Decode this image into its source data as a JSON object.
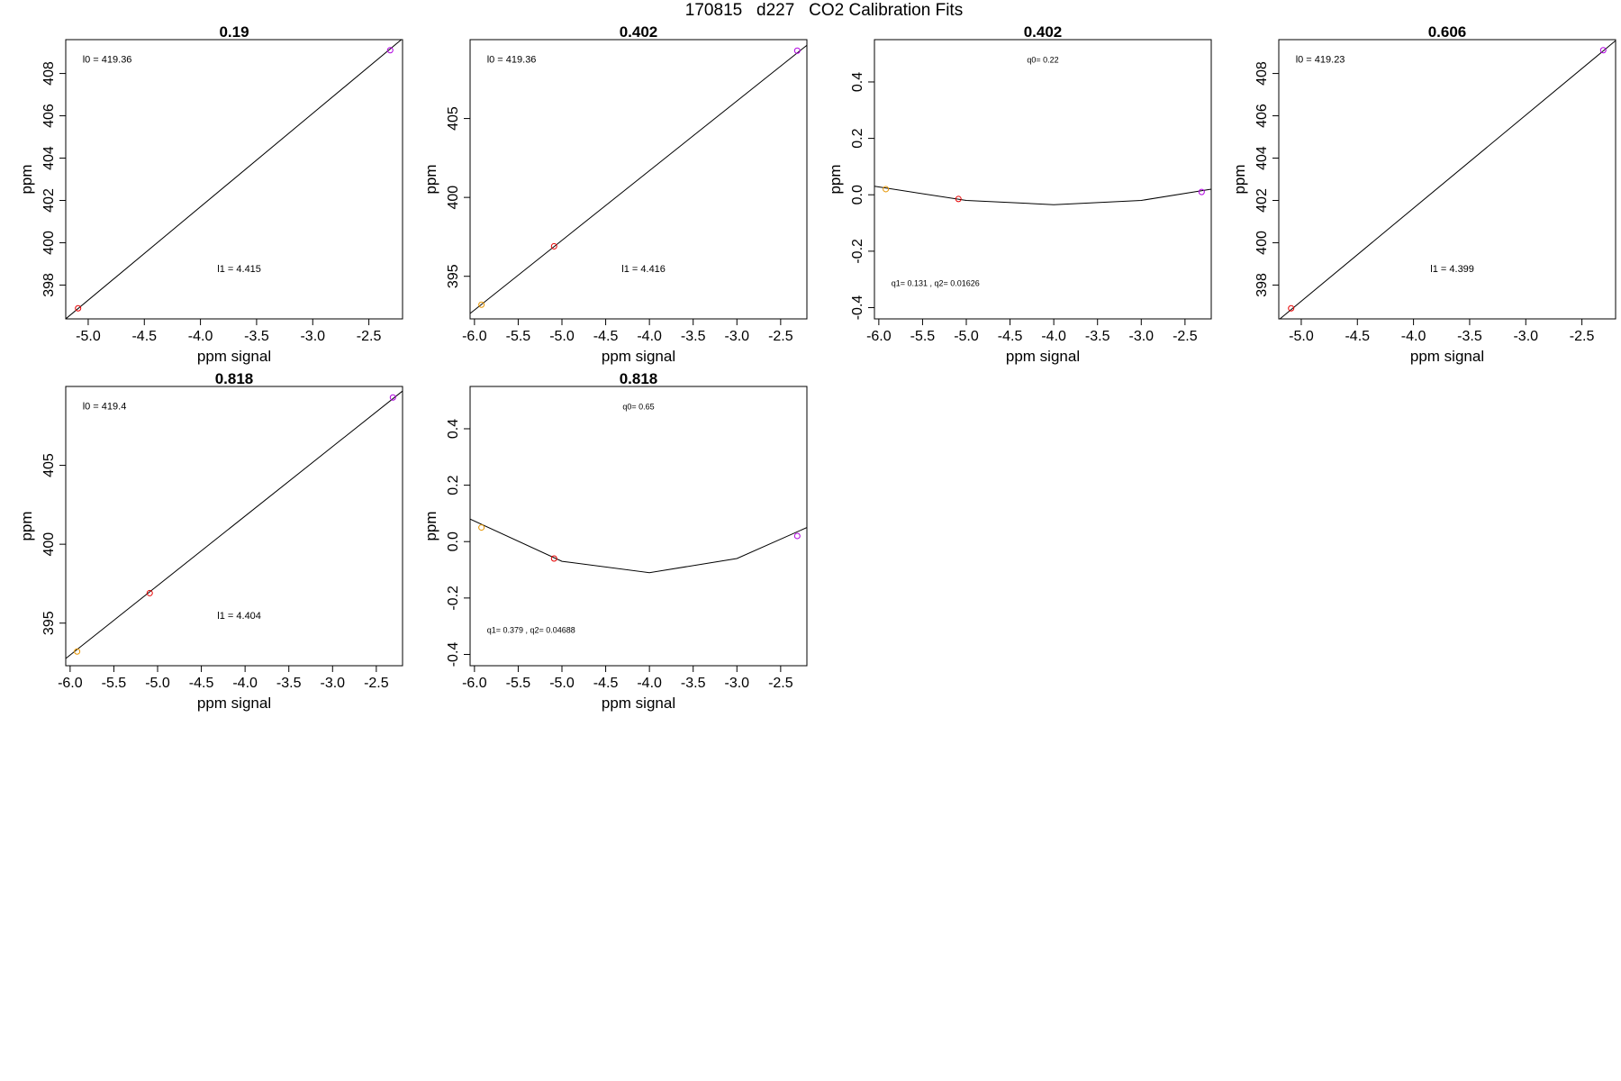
{
  "page": {
    "title": "170815   d227   CO2 Calibration Fits"
  },
  "chart_data": [
    {
      "type": "scatter",
      "title": "0.19",
      "xlabel": "ppm signal",
      "ylabel": "ppm",
      "xlim": [
        -5.2,
        -2.2
      ],
      "ylim": [
        396.4,
        409.6
      ],
      "xticks": [
        -5.0,
        -4.5,
        -4.0,
        -3.5,
        -3.0,
        -2.5
      ],
      "xtick_labels": [
        "-5.0",
        "-4.5",
        "-4.0",
        "-3.5",
        "-3.0",
        "-2.5"
      ],
      "yticks": [
        398,
        400,
        402,
        404,
        406,
        408
      ],
      "ytick_labels": [
        "398",
        "400",
        "402",
        "404",
        "406",
        "408"
      ],
      "points": [
        {
          "x": -5.09,
          "y": 396.9,
          "color": "#e60000"
        },
        {
          "x": -2.31,
          "y": 409.1,
          "color": "#b000e0"
        }
      ],
      "fit": {
        "kind": "linear",
        "intercept": 419.36,
        "slope": 4.415
      },
      "annotations": [
        {
          "text": "l0 =  419.36",
          "ax": 0.05,
          "ay": 0.93,
          "anchor": "start",
          "size": 11
        },
        {
          "text": "l1 =  4.415",
          "ax": 0.45,
          "ay": 0.18,
          "anchor": "start",
          "size": 11
        }
      ]
    },
    {
      "type": "scatter",
      "title": "0.402",
      "xlabel": "ppm signal",
      "ylabel": "ppm",
      "xlim": [
        -6.05,
        -2.2
      ],
      "ylim": [
        392.3,
        410.0
      ],
      "xticks": [
        -6.0,
        -5.5,
        -5.0,
        -4.5,
        -4.0,
        -3.5,
        -3.0,
        -2.5
      ],
      "xtick_labels": [
        "-6.0",
        "-5.5",
        "-5.0",
        "-4.5",
        "-4.0",
        "-3.5",
        "-3.0",
        "-2.5"
      ],
      "yticks": [
        395,
        400,
        405
      ],
      "ytick_labels": [
        "395",
        "400",
        "405"
      ],
      "points": [
        {
          "x": -5.92,
          "y": 393.2,
          "color": "#e69500"
        },
        {
          "x": -5.09,
          "y": 396.9,
          "color": "#e60000"
        },
        {
          "x": -2.31,
          "y": 409.3,
          "color": "#b000e0"
        }
      ],
      "fit": {
        "kind": "linear",
        "intercept": 419.36,
        "slope": 4.416
      },
      "annotations": [
        {
          "text": "l0 =  419.36",
          "ax": 0.05,
          "ay": 0.93,
          "anchor": "start",
          "size": 11
        },
        {
          "text": "l1 =  4.416",
          "ax": 0.45,
          "ay": 0.18,
          "anchor": "start",
          "size": 11
        }
      ]
    },
    {
      "type": "line",
      "title": "0.402",
      "xlabel": "ppm signal",
      "ylabel": "ppm",
      "xlim": [
        -6.05,
        -2.2
      ],
      "ylim": [
        -0.44,
        0.55
      ],
      "xticks": [
        -6.0,
        -5.5,
        -5.0,
        -4.5,
        -4.0,
        -3.5,
        -3.0,
        -2.5
      ],
      "xtick_labels": [
        "-6.0",
        "-5.5",
        "-5.0",
        "-4.5",
        "-4.0",
        "-3.5",
        "-3.0",
        "-2.5"
      ],
      "yticks": [
        -0.4,
        -0.2,
        0.0,
        0.2,
        0.4
      ],
      "ytick_labels": [
        "-0.4",
        "-0.2",
        "0.0",
        "0.2",
        "0.4"
      ],
      "points": [
        {
          "x": -5.92,
          "y": 0.02,
          "color": "#e69500"
        },
        {
          "x": -5.09,
          "y": -0.015,
          "color": "#e60000"
        },
        {
          "x": -2.31,
          "y": 0.01,
          "color": "#b000e0"
        }
      ],
      "line": {
        "x": [
          -6.05,
          -5.0,
          -4.0,
          -3.0,
          -2.2
        ],
        "y": [
          0.03,
          -0.02,
          -0.035,
          -0.02,
          0.02
        ]
      },
      "annotations": [
        {
          "text": "q0= 0.22",
          "ax": 0.5,
          "ay": 0.93,
          "anchor": "middle",
          "size": 9
        },
        {
          "text": "q1= 0.131 , q2= 0.01626",
          "ax": 0.05,
          "ay": 0.13,
          "anchor": "start",
          "size": 9
        }
      ]
    },
    {
      "type": "scatter",
      "title": "0.606",
      "xlabel": "ppm signal",
      "ylabel": "ppm",
      "xlim": [
        -5.2,
        -2.2
      ],
      "ylim": [
        396.4,
        409.6
      ],
      "xticks": [
        -5.0,
        -4.5,
        -4.0,
        -3.5,
        -3.0,
        -2.5
      ],
      "xtick_labels": [
        "-5.0",
        "-4.5",
        "-4.0",
        "-3.5",
        "-3.0",
        "-2.5"
      ],
      "yticks": [
        398,
        400,
        402,
        404,
        406,
        408
      ],
      "ytick_labels": [
        "398",
        "400",
        "402",
        "404",
        "406",
        "408"
      ],
      "points": [
        {
          "x": -5.09,
          "y": 396.9,
          "color": "#e60000"
        },
        {
          "x": -2.31,
          "y": 409.1,
          "color": "#b000e0"
        }
      ],
      "fit": {
        "kind": "linear",
        "intercept": 419.23,
        "slope": 4.399
      },
      "annotations": [
        {
          "text": "l0 =  419.23",
          "ax": 0.05,
          "ay": 0.93,
          "anchor": "start",
          "size": 11
        },
        {
          "text": "l1 =  4.399",
          "ax": 0.45,
          "ay": 0.18,
          "anchor": "start",
          "size": 11
        }
      ]
    },
    {
      "type": "scatter",
      "title": "0.818",
      "xlabel": "ppm signal",
      "ylabel": "ppm",
      "xlim": [
        -6.05,
        -2.2
      ],
      "ylim": [
        392.3,
        410.0
      ],
      "xticks": [
        -6.0,
        -5.5,
        -5.0,
        -4.5,
        -4.0,
        -3.5,
        -3.0,
        -2.5
      ],
      "xtick_labels": [
        "-6.0",
        "-5.5",
        "-5.0",
        "-4.5",
        "-4.0",
        "-3.5",
        "-3.0",
        "-2.5"
      ],
      "yticks": [
        395,
        400,
        405
      ],
      "ytick_labels": [
        "395",
        "400",
        "405"
      ],
      "points": [
        {
          "x": -5.92,
          "y": 393.2,
          "color": "#e69500"
        },
        {
          "x": -5.09,
          "y": 396.9,
          "color": "#e60000"
        },
        {
          "x": -2.31,
          "y": 409.3,
          "color": "#b000e0"
        }
      ],
      "fit": {
        "kind": "linear",
        "intercept": 419.4,
        "slope": 4.404
      },
      "annotations": [
        {
          "text": "l0 =  419.4",
          "ax": 0.05,
          "ay": 0.93,
          "anchor": "start",
          "size": 11
        },
        {
          "text": "l1 =  4.404",
          "ax": 0.45,
          "ay": 0.18,
          "anchor": "start",
          "size": 11
        }
      ]
    },
    {
      "type": "line",
      "title": "0.818",
      "xlabel": "ppm signal",
      "ylabel": "ppm",
      "xlim": [
        -6.05,
        -2.2
      ],
      "ylim": [
        -0.44,
        0.55
      ],
      "xticks": [
        -6.0,
        -5.5,
        -5.0,
        -4.5,
        -4.0,
        -3.5,
        -3.0,
        -2.5
      ],
      "xtick_labels": [
        "-6.0",
        "-5.5",
        "-5.0",
        "-4.5",
        "-4.0",
        "-3.5",
        "-3.0",
        "-2.5"
      ],
      "yticks": [
        -0.4,
        -0.2,
        0.0,
        0.2,
        0.4
      ],
      "ytick_labels": [
        "-0.4",
        "-0.2",
        "0.0",
        "0.2",
        "0.4"
      ],
      "points": [
        {
          "x": -5.92,
          "y": 0.05,
          "color": "#e69500"
        },
        {
          "x": -5.09,
          "y": -0.06,
          "color": "#e60000"
        },
        {
          "x": -2.31,
          "y": 0.02,
          "color": "#b000e0"
        }
      ],
      "line": {
        "x": [
          -6.05,
          -5.0,
          -4.0,
          -3.0,
          -2.2
        ],
        "y": [
          0.08,
          -0.07,
          -0.11,
          -0.06,
          0.05
        ]
      },
      "annotations": [
        {
          "text": "q0= 0.65",
          "ax": 0.5,
          "ay": 0.93,
          "anchor": "middle",
          "size": 9
        },
        {
          "text": "q1= 0.379 , q2= 0.04688",
          "ax": 0.05,
          "ay": 0.13,
          "anchor": "start",
          "size": 9
        }
      ]
    }
  ]
}
